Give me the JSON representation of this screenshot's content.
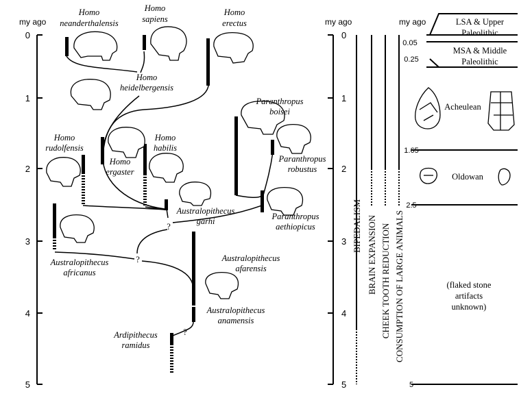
{
  "axes": {
    "left_header": "my ago",
    "mid_header": "my ago",
    "right_header": "my ago",
    "left_ticks": [
      "0",
      "1",
      "2",
      "3",
      "4",
      "5"
    ],
    "mid_ticks": [
      "0",
      "1",
      "2",
      "3",
      "4",
      "5"
    ],
    "right_ticks": [
      "0.05",
      "0.25",
      "1.65",
      "2.5",
      "5"
    ]
  },
  "species": {
    "neanderthalensis": [
      "Homo",
      "neanderthalensis"
    ],
    "sapiens": [
      "Homo",
      "sapiens"
    ],
    "erectus": [
      "Homo",
      "erectus"
    ],
    "heidelbergensis": [
      "Homo",
      "heidelbergensis"
    ],
    "boisei": [
      "Paranthropus",
      "boisei"
    ],
    "rudolfensis": [
      "Homo",
      "rudolfensis"
    ],
    "habilis": [
      "Homo",
      "habilis"
    ],
    "ergaster": [
      "Homo",
      "ergaster"
    ],
    "robustus": [
      "Paranthropus",
      "robustus"
    ],
    "garhi": [
      "Australopithecus",
      "garhi"
    ],
    "aethiopicus": [
      "Paranthropus",
      "aethiopicus"
    ],
    "africanus": [
      "Australopithecus",
      "africanus"
    ],
    "afarensis": [
      "Australopithecus",
      "afarensis"
    ],
    "anamensis": [
      "Australopithecus",
      "anamensis"
    ],
    "ramidus": [
      "Ardipithecus",
      "ramidus"
    ]
  },
  "unknown_marker": "?",
  "traits": [
    "BIPEDALISM",
    "BRAIN EXPANSION",
    "CHEEK TOOTH REDUCTION",
    "CONSUMPTION OF LARGE ANIMALS"
  ],
  "industries": {
    "lsa": [
      "LSA & Upper",
      "Paleolithic"
    ],
    "msa": [
      "MSA & Middle",
      "Paleolithic"
    ],
    "acheulean": "Acheulean",
    "oldowan": "Oldowan",
    "unknown": [
      "(flaked stone",
      "artifacts",
      "unknown)"
    ]
  },
  "chart_data": {
    "type": "diagram",
    "time_axis_units": "my ago",
    "time_range": [
      0,
      5
    ],
    "species_ranges": [
      {
        "species": "Homo neanderthalensis",
        "solid": [
          0.03,
          0.25
        ]
      },
      {
        "species": "Homo sapiens",
        "solid": [
          0,
          0.13
        ]
      },
      {
        "species": "Homo erectus",
        "solid": [
          0.05,
          0.8
        ]
      },
      {
        "species": "Paranthropus boisei",
        "solid": [
          1.25,
          2.3
        ]
      },
      {
        "species": "Paranthropus robustus",
        "solid": [
          1.55,
          1.8
        ]
      },
      {
        "species": "Homo rudolfensis",
        "solid": [
          1.8,
          2.1
        ],
        "uncertain": [
          2.1,
          2.5
        ]
      },
      {
        "species": "Homo habilis",
        "solid": [
          1.6,
          2.1
        ],
        "uncertain": [
          2.1,
          2.5
        ]
      },
      {
        "species": "Homo ergaster",
        "solid": [
          1.55,
          1.9
        ]
      },
      {
        "species": "Australopithecus garhi",
        "solid": [
          2.45,
          2.6
        ]
      },
      {
        "species": "Paranthropus aethiopicus",
        "solid": [
          2.3,
          2.6
        ]
      },
      {
        "species": "Australopithecus africanus",
        "solid": [
          2.5,
          3.0
        ],
        "uncertain": [
          3.0,
          3.1
        ]
      },
      {
        "species": "Australopithecus afarensis",
        "solid": [
          2.85,
          3.9
        ]
      },
      {
        "species": "Australopithecus anamensis",
        "solid": [
          3.95,
          4.15
        ]
      },
      {
        "species": "Ardipithecus ramidus",
        "solid": [
          4.35,
          4.5
        ],
        "uncertain": [
          4.5,
          4.85
        ]
      }
    ],
    "trait_ranges": [
      {
        "trait": "BIPEDALISM",
        "solid": [
          0,
          4.25
        ],
        "uncertain": [
          4.25,
          5
        ]
      },
      {
        "trait": "BRAIN EXPANSION",
        "solid": [
          0,
          2.0
        ],
        "uncertain": [
          2.0,
          2.5
        ]
      },
      {
        "trait": "CHEEK TOOTH REDUCTION",
        "solid": [
          0,
          2.0
        ],
        "uncertain": [
          2.0,
          2.5
        ]
      },
      {
        "trait": "CONSUMPTION OF LARGE ANIMALS",
        "solid": [
          0,
          2.0
        ],
        "uncertain": [
          2.0,
          2.5
        ]
      }
    ],
    "industry_boundaries": [
      0.05,
      0.25,
      1.65,
      2.5,
      5
    ]
  }
}
